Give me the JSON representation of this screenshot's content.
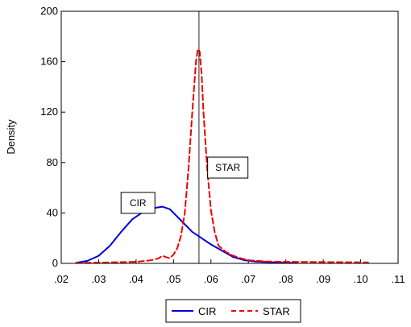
{
  "chart_data": {
    "type": "line",
    "ylabel": "Density",
    "xlim": [
      0.02,
      0.11
    ],
    "ylim": [
      0,
      200
    ],
    "x_ticks": [
      0.02,
      0.03,
      0.04,
      0.05,
      0.06,
      0.07,
      0.08,
      0.09,
      0.1,
      0.11
    ],
    "x_tick_labels": [
      ".02",
      ".03",
      ".04",
      ".05",
      ".06",
      ".07",
      ".08",
      ".09",
      ".10",
      ".11"
    ],
    "y_ticks": [
      0,
      40,
      80,
      120,
      160,
      200
    ],
    "y_tick_labels": [
      "0",
      "40",
      "80",
      "120",
      "160",
      "200"
    ],
    "vertical_reference_line": 0.0568,
    "legend_position": "bottom-center",
    "grid": false,
    "series": [
      {
        "name": "CIR",
        "color": "#0000dd",
        "dash": "solid",
        "x": [
          0.024,
          0.027,
          0.03,
          0.033,
          0.036,
          0.039,
          0.042,
          0.045,
          0.047,
          0.049,
          0.051,
          0.053,
          0.055,
          0.057,
          0.06,
          0.063,
          0.066,
          0.069,
          0.072,
          0.075,
          0.078,
          0.08,
          0.083
        ],
        "y": [
          0.5,
          2,
          6,
          14,
          25,
          35,
          41,
          44,
          45,
          43,
          37,
          31,
          25,
          21,
          15,
          10,
          5,
          2.5,
          1.5,
          1,
          0.6,
          0.4,
          0.3
        ]
      },
      {
        "name": "STAR",
        "color": "#ee0000",
        "dash": "dashed",
        "x": [
          0.024,
          0.03,
          0.035,
          0.04,
          0.044,
          0.046,
          0.047,
          0.048,
          0.049,
          0.05,
          0.051,
          0.052,
          0.053,
          0.054,
          0.055,
          0.056,
          0.0565,
          0.057,
          0.0575,
          0.058,
          0.059,
          0.06,
          0.061,
          0.062,
          0.064,
          0.066,
          0.068,
          0.07,
          0.075,
          0.08,
          0.09,
          0.1,
          0.102
        ],
        "y": [
          0.3,
          0.6,
          0.9,
          1.2,
          2.5,
          4,
          6,
          5,
          4,
          7,
          12,
          22,
          40,
          75,
          120,
          160,
          170,
          168,
          150,
          120,
          75,
          42,
          25,
          14,
          9,
          6,
          4,
          2.5,
          1.5,
          1.2,
          1,
          0.8,
          0.7
        ]
      }
    ],
    "annotations": [
      {
        "text": "CIR",
        "x": 0.0405,
        "y": 48
      },
      {
        "text": "STAR",
        "x": 0.0645,
        "y": 76
      }
    ]
  }
}
